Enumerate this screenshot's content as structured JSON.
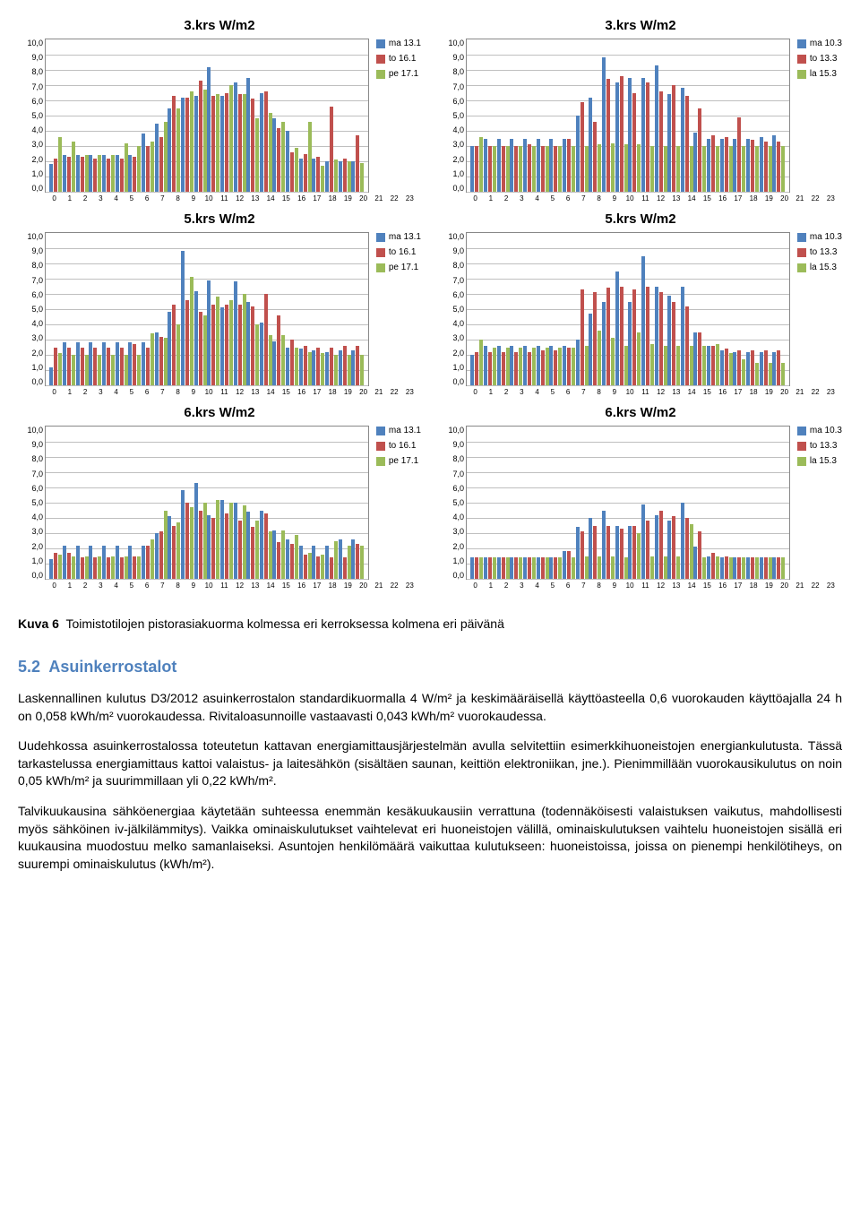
{
  "colors": {
    "series_a": "#4f81bd",
    "series_b": "#c0504d",
    "series_c": "#9bbb59",
    "grid": "#bfbfbf",
    "border": "#888888",
    "heading": "#4f81bd"
  },
  "y_axis": {
    "max": 10,
    "ticks": [
      "10,0",
      "9,0",
      "8,0",
      "7,0",
      "6,0",
      "5,0",
      "4,0",
      "3,0",
      "2,0",
      "1,0",
      "0,0"
    ]
  },
  "x_labels": [
    "0",
    "1",
    "2",
    "3",
    "4",
    "5",
    "6",
    "7",
    "8",
    "9",
    "10",
    "11",
    "12",
    "13",
    "14",
    "15",
    "16",
    "17",
    "18",
    "19",
    "20",
    "21",
    "22",
    "23"
  ],
  "legends": {
    "left": [
      {
        "label": "ma 13.1",
        "color": "#4f81bd"
      },
      {
        "label": "to 16.1",
        "color": "#c0504d"
      },
      {
        "label": "pe 17.1",
        "color": "#9bbb59"
      }
    ],
    "right": [
      {
        "label": "ma 10.3",
        "color": "#4f81bd"
      },
      {
        "label": "to 13.3",
        "color": "#c0504d"
      },
      {
        "label": "la 15.3",
        "color": "#9bbb59"
      }
    ]
  },
  "charts": [
    {
      "title": "3.krs W/m2",
      "legend": "left",
      "a": [
        1.8,
        2.4,
        2.4,
        2.4,
        2.4,
        2.4,
        2.4,
        3.8,
        4.5,
        5.5,
        6.2,
        6.3,
        8.2,
        6.3,
        7.2,
        7.5,
        6.5,
        4.8,
        4.0,
        2.2,
        2.2,
        2.0,
        2.0,
        2.0
      ],
      "b": [
        2.2,
        2.3,
        2.3,
        2.2,
        2.2,
        2.2,
        2.3,
        3.0,
        3.6,
        6.3,
        6.2,
        7.3,
        6.3,
        6.5,
        6.4,
        6.1,
        6.6,
        4.2,
        2.6,
        2.5,
        2.3,
        5.6,
        2.2,
        3.7
      ],
      "c": [
        3.6,
        3.3,
        2.4,
        2.4,
        2.4,
        3.2,
        3.0,
        3.3,
        4.6,
        5.5,
        6.6,
        6.7,
        6.4,
        7.0,
        6.4,
        4.8,
        5.2,
        4.6,
        2.9,
        4.6,
        1.7,
        2.1,
        2.0,
        1.9
      ]
    },
    {
      "title": "3.krs W/m2",
      "legend": "right",
      "a": [
        3.0,
        3.5,
        3.5,
        3.5,
        3.5,
        3.5,
        3.5,
        3.5,
        5.0,
        6.2,
        8.8,
        7.2,
        7.5,
        7.5,
        8.3,
        6.4,
        6.8,
        3.9,
        3.5,
        3.5,
        3.5,
        3.5,
        3.6,
        3.7
      ],
      "b": [
        3.0,
        3.0,
        3.0,
        3.0,
        3.1,
        3.0,
        3.0,
        3.5,
        5.9,
        4.6,
        7.4,
        7.6,
        6.5,
        7.2,
        6.6,
        7.0,
        6.3,
        5.5,
        3.7,
        3.6,
        4.9,
        3.4,
        3.3,
        3.3
      ],
      "c": [
        3.6,
        3.0,
        3.0,
        3.0,
        3.0,
        3.0,
        3.0,
        3.0,
        3.0,
        3.1,
        3.2,
        3.1,
        3.1,
        3.0,
        3.0,
        3.0,
        3.0,
        3.0,
        3.0,
        3.0,
        3.0,
        3.0,
        3.0,
        3.0
      ]
    },
    {
      "title": "5.krs W/m2",
      "legend": "left",
      "a": [
        1.2,
        2.8,
        2.8,
        2.8,
        2.8,
        2.8,
        2.8,
        2.8,
        3.5,
        4.8,
        8.8,
        6.2,
        6.9,
        5.1,
        6.8,
        5.5,
        4.1,
        2.9,
        2.5,
        2.4,
        2.3,
        2.2,
        2.3,
        2.3
      ],
      "b": [
        2.5,
        2.5,
        2.5,
        2.5,
        2.5,
        2.5,
        2.7,
        2.5,
        3.2,
        5.3,
        5.6,
        4.8,
        5.3,
        5.3,
        5.3,
        5.2,
        6.0,
        4.6,
        3.0,
        2.6,
        2.5,
        2.5,
        2.6,
        2.6
      ],
      "c": [
        2.1,
        2.0,
        2.0,
        2.0,
        2.0,
        2.0,
        2.0,
        3.4,
        3.1,
        4.0,
        7.1,
        4.6,
        5.8,
        5.6,
        6.0,
        4.0,
        3.3,
        3.3,
        2.5,
        2.2,
        2.1,
        2.0,
        2.0,
        2.0
      ]
    },
    {
      "title": "5.krs W/m2",
      "legend": "right",
      "a": [
        2.0,
        2.6,
        2.6,
        2.6,
        2.6,
        2.6,
        2.6,
        2.6,
        3.0,
        4.7,
        5.5,
        7.5,
        5.5,
        8.5,
        6.5,
        5.9,
        6.5,
        3.5,
        2.6,
        2.3,
        2.2,
        2.2,
        2.2,
        2.2
      ],
      "b": [
        2.2,
        2.2,
        2.2,
        2.2,
        2.2,
        2.3,
        2.3,
        2.5,
        6.3,
        6.1,
        6.4,
        6.5,
        6.3,
        6.5,
        6.1,
        5.5,
        5.2,
        3.5,
        2.6,
        2.4,
        2.3,
        2.3,
        2.3,
        2.3
      ],
      "c": [
        3.0,
        2.5,
        2.5,
        2.5,
        2.5,
        2.5,
        2.5,
        2.5,
        2.6,
        3.6,
        3.1,
        2.6,
        3.5,
        2.7,
        2.6,
        2.6,
        2.6,
        2.6,
        2.7,
        2.1,
        1.7,
        1.5,
        1.5,
        1.5
      ]
    },
    {
      "title": "6.krs W/m2",
      "legend": "left",
      "a": [
        1.3,
        2.2,
        2.2,
        2.2,
        2.2,
        2.2,
        2.2,
        2.2,
        3.0,
        4.1,
        5.8,
        6.3,
        4.2,
        5.2,
        5.0,
        4.4,
        4.5,
        3.2,
        2.6,
        2.2,
        2.2,
        2.2,
        2.6,
        2.6
      ],
      "b": [
        1.7,
        1.7,
        1.4,
        1.4,
        1.4,
        1.4,
        1.5,
        2.2,
        3.1,
        3.5,
        5.0,
        4.5,
        4.0,
        4.3,
        3.8,
        3.4,
        4.3,
        2.4,
        2.3,
        1.6,
        1.5,
        1.4,
        1.4,
        2.3
      ],
      "c": [
        1.6,
        1.5,
        1.5,
        1.5,
        1.5,
        1.5,
        1.5,
        2.6,
        4.5,
        3.7,
        4.7,
        5.0,
        5.2,
        5.0,
        4.8,
        3.8,
        3.1,
        3.2,
        2.9,
        1.7,
        1.6,
        2.5,
        2.2,
        2.2
      ]
    },
    {
      "title": "6.krs W/m2",
      "legend": "right",
      "a": [
        1.4,
        1.4,
        1.4,
        1.4,
        1.4,
        1.4,
        1.4,
        1.8,
        3.4,
        4.0,
        4.5,
        3.5,
        3.5,
        4.9,
        4.2,
        3.8,
        5.0,
        2.1,
        1.5,
        1.4,
        1.4,
        1.4,
        1.4,
        1.4
      ],
      "b": [
        1.4,
        1.4,
        1.4,
        1.4,
        1.4,
        1.4,
        1.4,
        1.8,
        3.1,
        3.5,
        3.5,
        3.3,
        3.5,
        3.8,
        4.5,
        4.1,
        4.0,
        3.1,
        1.7,
        1.5,
        1.4,
        1.4,
        1.4,
        1.4
      ],
      "c": [
        1.4,
        1.4,
        1.4,
        1.4,
        1.4,
        1.4,
        1.4,
        1.4,
        1.5,
        1.5,
        1.5,
        1.4,
        3.0,
        1.5,
        1.5,
        1.5,
        3.6,
        1.4,
        1.5,
        1.4,
        1.4,
        1.4,
        1.4,
        1.4
      ]
    }
  ],
  "caption_prefix": "Kuva 6",
  "caption_text": "Toimistotilojen pistorasiakuorma kolmessa eri kerroksessa kolmena eri päivänä",
  "heading_number": "5.2",
  "heading_text": "Asuinkerrostalot",
  "paragraphs": [
    "Laskennallinen kulutus D3/2012 asuinkerrostalon standardikuormalla 4 W/m² ja keskimääräisellä käyttöasteella 0,6 vuorokauden käyttöajalla 24 h on 0,058 kWh/m² vuorokaudessa. Rivitaloasunnoille vastaavasti 0,043 kWh/m² vuorokaudessa.",
    "Uudehkossa asuinkerrostalossa toteutetun kattavan energiamittausjärjestelmän avulla selvitettiin esimerkkihuoneistojen energiankulutusta. Tässä tarkastelussa energiamittaus kattoi valaistus- ja laitesähkön (sisältäen saunan, keittiön elektroniikan, jne.). Pienimmillään vuorokausikulutus on noin 0,05 kWh/m² ja suurimmillaan yli 0,22 kWh/m².",
    "Talvikuukausina sähköenergiaa käytetään suhteessa enemmän kesäkuukausiin verrattuna (todennäköisesti valaistuksen vaikutus, mahdollisesti myös sähköinen iv-jälkilämmitys).  Vaikka ominaiskulutukset vaihtelevat eri huoneistojen välillä, ominaiskulutuksen vaihtelu huoneistojen sisällä eri kuukausina muodostuu melko samanlaiseksi.  Asuntojen henkilömäärä vaikuttaa kulutukseen: huoneistoissa, joissa on pienempi henkilötiheys, on suurempi ominaiskulutus (kWh/m²)."
  ]
}
